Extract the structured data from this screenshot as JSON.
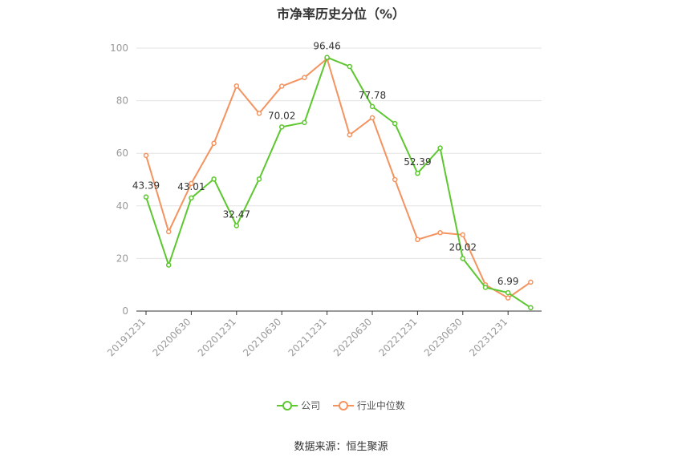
{
  "chart_data": {
    "type": "line",
    "title": "市净率历史分位（%）",
    "ylim": [
      0,
      100
    ],
    "y_ticks": [
      0,
      20,
      40,
      60,
      80,
      100
    ],
    "x_tick_labels": [
      "20191231",
      "20200630",
      "20201231",
      "20210630",
      "20211231",
      "20220630",
      "20221231",
      "20230630",
      "20231231"
    ],
    "x": [
      "20191231",
      "20200331",
      "20200630",
      "20200930",
      "20201231",
      "20210331",
      "20210630",
      "20210930",
      "20211231",
      "20220331",
      "20220630",
      "20220930",
      "20221231",
      "20230331",
      "20230630",
      "20230930",
      "20231231",
      "20240331"
    ],
    "series": [
      {
        "name": "公司",
        "color": "#5cc72e",
        "values": [
          43.39,
          17.5,
          43.01,
          50.2,
          32.47,
          50.2,
          70.02,
          71.7,
          96.46,
          93.0,
          77.78,
          71.3,
          52.39,
          62.0,
          20.02,
          9.0,
          6.99,
          1.3
        ],
        "labels": [
          "43.39",
          null,
          "43.01",
          null,
          "32.47",
          null,
          "70.02",
          null,
          "96.46",
          null,
          "77.78",
          null,
          "52.39",
          null,
          "20.02",
          null,
          "6.99",
          null
        ]
      },
      {
        "name": "行业中位数",
        "color": "#f4935f",
        "values": [
          59.2,
          30.2,
          48.5,
          63.8,
          85.6,
          75.2,
          85.5,
          88.8,
          96.0,
          67.0,
          73.5,
          50.0,
          27.2,
          29.8,
          29.0,
          10.0,
          5.0,
          11.0
        ],
        "labels": []
      }
    ],
    "grid": true,
    "legend_position": "bottom-center"
  },
  "source": "数据来源：恒生聚源"
}
